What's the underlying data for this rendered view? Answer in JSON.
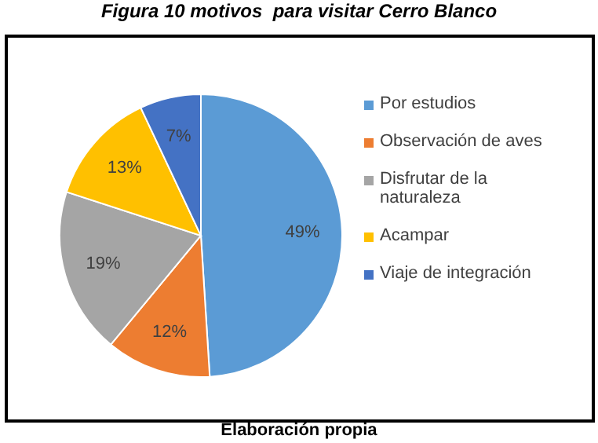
{
  "chart_data": {
    "type": "pie",
    "title": "Figura 10 motivos  para visitar Cerro Blanco",
    "categories": [
      "Por estudios",
      "Observación de aves",
      "Disfrutar de la naturaleza",
      "Acampar",
      "Viaje de integración"
    ],
    "values": [
      49,
      12,
      19,
      13,
      7
    ],
    "colors": [
      "#5b9bd5",
      "#ed7d31",
      "#a5a5a5",
      "#ffc000",
      "#4472c4"
    ],
    "value_labels": [
      "49%",
      "12%",
      "19%",
      "13%",
      "7%"
    ],
    "legend": "right",
    "annotations": [
      "Elaboración propia"
    ]
  }
}
